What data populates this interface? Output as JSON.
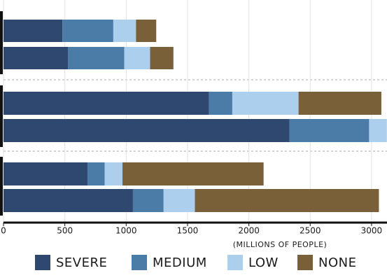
{
  "chart_data": {
    "type": "stacked-barh",
    "xlabel": "(MILLIONS OF PEOPLE)",
    "series": [
      {
        "name": "SEVERE",
        "color": "#2f4870",
        "values": [
          480,
          525,
          1675,
          2330,
          685,
          1055
        ]
      },
      {
        "name": "MEDIUM",
        "color": "#4b7ca8",
        "values": [
          415,
          460,
          190,
          650,
          140,
          250
        ]
      },
      {
        "name": "LOW",
        "color": "#abcfec",
        "values": [
          185,
          210,
          540,
          145,
          145,
          255
        ]
      },
      {
        "name": "NONE",
        "color": "#7a6038",
        "values": [
          165,
          190,
          675,
          null,
          1150,
          1500
        ]
      }
    ],
    "xlim": [
      0,
      3126
    ],
    "xticks": [
      0,
      500,
      1000,
      1500,
      2000,
      2500,
      3000
    ],
    "grid": true
  }
}
